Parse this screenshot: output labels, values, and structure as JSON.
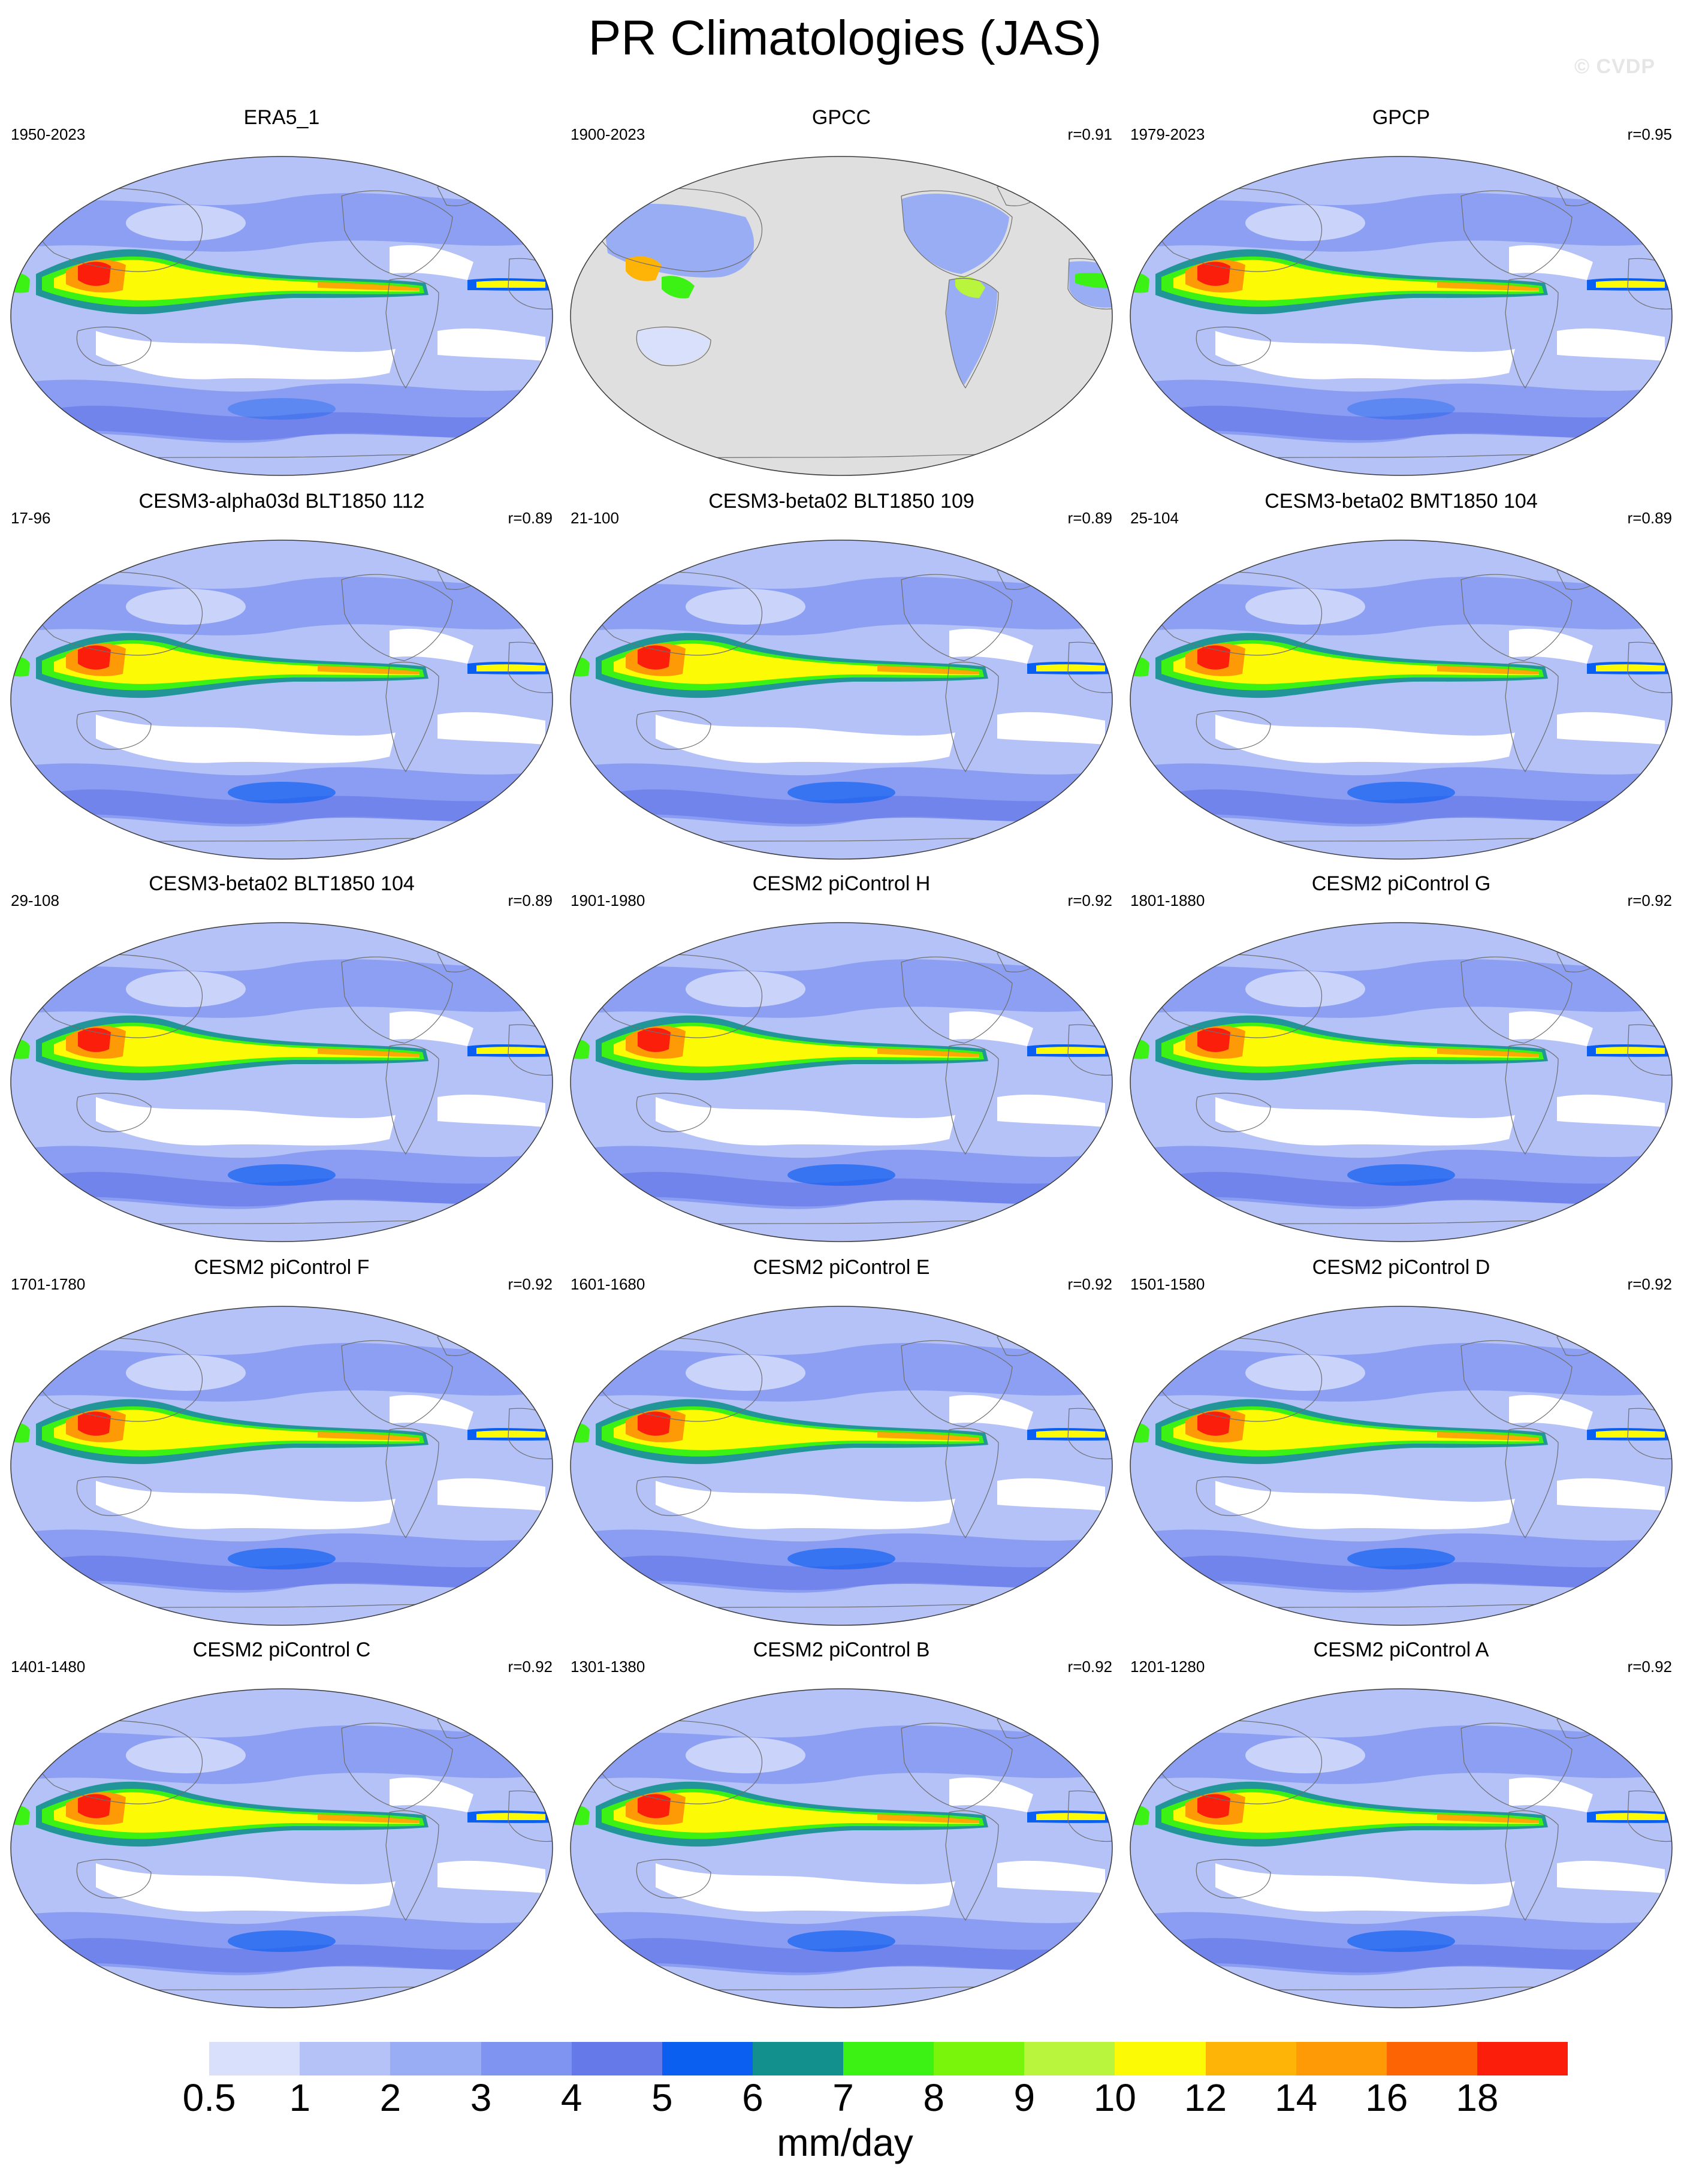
{
  "title": "PR Climatologies (JAS)",
  "watermark": "© CVDP",
  "panels": [
    {
      "title": "ERA5_1",
      "period": "1950-2023",
      "corr": "",
      "style": "obs"
    },
    {
      "title": "GPCC",
      "period": "1900-2023",
      "corr": "r=0.91",
      "style": "land"
    },
    {
      "title": "GPCP",
      "period": "1979-2023",
      "corr": "r=0.95",
      "style": "obs"
    },
    {
      "title": "CESM3-alpha03d BLT1850 112",
      "period": "17-96",
      "corr": "r=0.89",
      "style": "model"
    },
    {
      "title": "CESM3-beta02 BLT1850 109",
      "period": "21-100",
      "corr": "r=0.89",
      "style": "model"
    },
    {
      "title": "CESM3-beta02 BMT1850 104",
      "period": "25-104",
      "corr": "r=0.89",
      "style": "model"
    },
    {
      "title": "CESM3-beta02 BLT1850 104",
      "period": "29-108",
      "corr": "r=0.89",
      "style": "model"
    },
    {
      "title": "CESM2 piControl H",
      "period": "1901-1980",
      "corr": "r=0.92",
      "style": "model"
    },
    {
      "title": "CESM2 piControl G",
      "period": "1801-1880",
      "corr": "r=0.92",
      "style": "model"
    },
    {
      "title": "CESM2 piControl F",
      "period": "1701-1780",
      "corr": "r=0.92",
      "style": "model"
    },
    {
      "title": "CESM2 piControl E",
      "period": "1601-1680",
      "corr": "r=0.92",
      "style": "model"
    },
    {
      "title": "CESM2 piControl D",
      "period": "1501-1580",
      "corr": "r=0.92",
      "style": "model"
    },
    {
      "title": "CESM2 piControl C",
      "period": "1401-1480",
      "corr": "r=0.92",
      "style": "model"
    },
    {
      "title": "CESM2 piControl B",
      "period": "1301-1380",
      "corr": "r=0.92",
      "style": "model"
    },
    {
      "title": "CESM2 piControl A",
      "period": "1201-1280",
      "corr": "r=0.92",
      "style": "model"
    }
  ],
  "colorbar": {
    "colors": [
      "#ffffff",
      "#d9e0fb",
      "#b4c2f7",
      "#98adf4",
      "#7f93f0",
      "#6679e8",
      "#0a5ef0",
      "#12908e",
      "#3cf215",
      "#78f50a",
      "#b8f53c",
      "#fdfa06",
      "#fdb406",
      "#fd9a06",
      "#fc6404",
      "#fb1e0a"
    ],
    "labels": [
      "0.5",
      "1",
      "2",
      "3",
      "4",
      "5",
      "6",
      "7",
      "8",
      "9",
      "10",
      "12",
      "14",
      "16",
      "18"
    ],
    "units": "mm/day"
  },
  "map_colors": {
    "ocean_light": "#d9e0fb",
    "land_missing": "#dfdfdf",
    "coast": "#6e6e6e",
    "rim": "#3a3a3a"
  }
}
